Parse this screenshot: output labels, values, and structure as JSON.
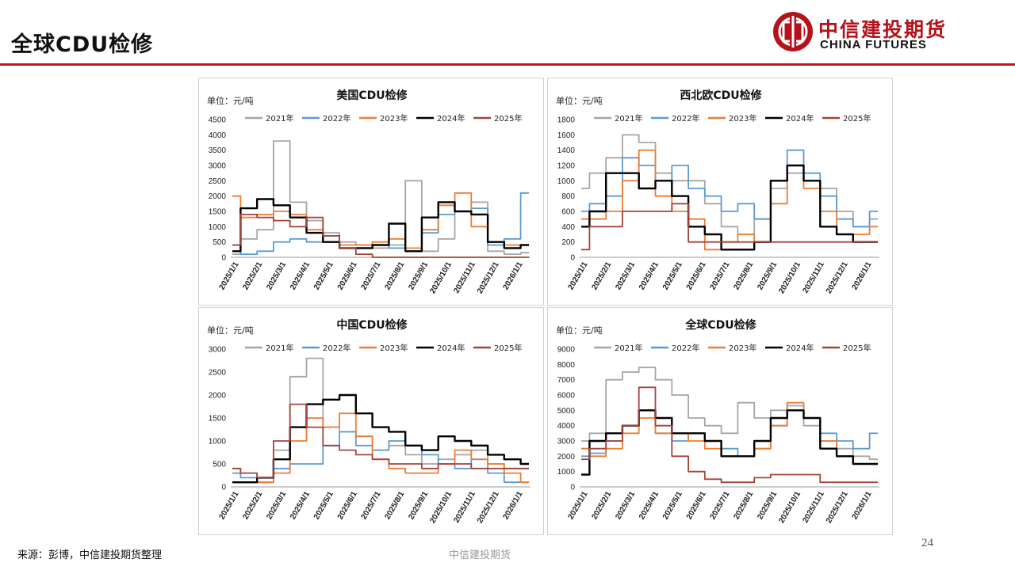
{
  "slide": {
    "title": "全球CDU检修",
    "source": "来源：彭博，中信建投期货整理",
    "footer_center": "中信建投期货",
    "page_number": "24"
  },
  "logo": {
    "cn": "中信建投期货",
    "en": "CHINA FUTURES",
    "color": "#b5121b"
  },
  "series_colors": {
    "2021年": "#a6a6a6",
    "2022年": "#5b9bd5",
    "2023年": "#ed7d31",
    "2024年": "#000000",
    "2025年": "#a5433b"
  },
  "chart_data": [
    {
      "type": "line",
      "title": "美国CDU检修",
      "unit_label": "单位：元/吨",
      "ylim": [
        0,
        4500
      ],
      "yticks": [
        0,
        500,
        1000,
        1500,
        2000,
        2500,
        3000,
        3500,
        4000,
        4500
      ],
      "x_ticks": [
        "2025/1/1",
        "2025/2/1",
        "2025/3/1",
        "2025/4/1",
        "2025/5/1",
        "2025/6/1",
        "2025/7/1",
        "2025/8/1",
        "2025/9/1",
        "2025/10/1",
        "2025/11/1",
        "2025/12/1",
        "2026/1/1"
      ],
      "legend": "top",
      "series": [
        {
          "name": "2021年",
          "values": [
            100,
            600,
            900,
            3800,
            1800,
            1200,
            800,
            500,
            400,
            300,
            400,
            2500,
            200,
            600,
            1500,
            1800,
            200,
            100,
            150
          ]
        },
        {
          "name": "2022年",
          "values": [
            400,
            100,
            200,
            500,
            600,
            500,
            700,
            300,
            300,
            400,
            300,
            200,
            800,
            1400,
            1500,
            1600,
            400,
            600,
            2100
          ]
        },
        {
          "name": "2023年",
          "values": [
            2000,
            1300,
            1400,
            1500,
            1400,
            900,
            700,
            400,
            400,
            500,
            600,
            300,
            900,
            1700,
            2100,
            1000,
            500,
            400,
            400
          ]
        },
        {
          "name": "2024年",
          "values": [
            200,
            1600,
            1900,
            1700,
            1300,
            800,
            500,
            300,
            300,
            400,
            1100,
            200,
            1300,
            1800,
            1500,
            1400,
            500,
            300,
            400
          ]
        },
        {
          "name": "2025年",
          "values": [
            400,
            1400,
            1300,
            1200,
            1000,
            1300,
            700,
            300,
            100,
            0,
            0,
            0,
            0,
            0,
            0,
            0,
            0,
            0,
            0
          ]
        }
      ]
    },
    {
      "type": "line",
      "title": "西北欧CDU检修",
      "unit_label": "单位：元/吨",
      "ylim": [
        0,
        1800
      ],
      "yticks": [
        0,
        200,
        400,
        600,
        800,
        1000,
        1200,
        1400,
        1600,
        1800
      ],
      "x_ticks": [
        "2025/1/1",
        "2025/2/1",
        "2025/3/1",
        "2025/4/1",
        "2025/5/1",
        "2025/6/1",
        "2025/7/1",
        "2025/8/1",
        "2025/9/1",
        "2025/10/1",
        "2025/11/1",
        "2025/12/1",
        "2026/1/1"
      ],
      "legend": "top",
      "series": [
        {
          "name": "2021年",
          "values": [
            900,
            1100,
            1300,
            1600,
            1500,
            1100,
            1000,
            1000,
            700,
            400,
            300,
            500,
            900,
            1100,
            1000,
            900,
            600,
            400,
            500
          ]
        },
        {
          "name": "2022年",
          "values": [
            600,
            700,
            800,
            1300,
            1200,
            1000,
            1200,
            900,
            800,
            600,
            700,
            500,
            1000,
            1400,
            1100,
            800,
            500,
            400,
            600
          ]
        },
        {
          "name": "2023年",
          "values": [
            500,
            500,
            600,
            1000,
            1400,
            800,
            600,
            500,
            100,
            200,
            300,
            200,
            700,
            1200,
            900,
            600,
            300,
            300,
            400
          ]
        },
        {
          "name": "2024年",
          "values": [
            400,
            600,
            1100,
            1100,
            900,
            1000,
            800,
            400,
            300,
            100,
            100,
            200,
            1000,
            1200,
            1000,
            400,
            300,
            200,
            200
          ]
        },
        {
          "name": "2025年",
          "values": [
            100,
            400,
            400,
            600,
            600,
            600,
            700,
            200,
            200,
            200,
            200,
            200,
            200,
            200,
            200,
            200,
            200,
            200,
            200
          ]
        }
      ]
    },
    {
      "type": "line",
      "title": "中国CDU检修",
      "unit_label": "单位：元/吨",
      "ylim": [
        0,
        3000
      ],
      "yticks": [
        0,
        500,
        1000,
        1500,
        2000,
        2500,
        3000
      ],
      "x_ticks": [
        "2025/1/1",
        "2025/2/1",
        "2025/3/1",
        "2025/4/1",
        "2025/5/1",
        "2025/6/1",
        "2025/7/1",
        "2025/8/1",
        "2025/9/1",
        "2025/10/1",
        "2025/11/1",
        "2025/12/1",
        "2026/1/1"
      ],
      "legend": "top",
      "series": [
        {
          "name": "2021年",
          "values": [
            400,
            300,
            200,
            800,
            2400,
            2800,
            1300,
            1200,
            1100,
            800,
            900,
            700,
            500,
            600,
            700,
            800,
            500,
            400,
            400
          ]
        },
        {
          "name": "2022年",
          "values": [
            300,
            200,
            100,
            400,
            500,
            500,
            900,
            1200,
            900,
            800,
            1000,
            900,
            700,
            500,
            400,
            600,
            300,
            100,
            100
          ]
        },
        {
          "name": "2023年",
          "values": [
            100,
            100,
            100,
            300,
            1000,
            1500,
            1300,
            1600,
            1100,
            600,
            400,
            300,
            300,
            500,
            800,
            600,
            500,
            300,
            100
          ]
        },
        {
          "name": "2024年",
          "values": [
            100,
            100,
            200,
            600,
            1300,
            1800,
            1900,
            2000,
            1600,
            1300,
            1200,
            900,
            800,
            1100,
            1000,
            900,
            700,
            600,
            500
          ]
        },
        {
          "name": "2025年",
          "values": [
            400,
            300,
            200,
            1000,
            1800,
            1300,
            900,
            800,
            700,
            600,
            500,
            500,
            400,
            500,
            500,
            400,
            400,
            400,
            400
          ]
        }
      ]
    },
    {
      "type": "line",
      "title": "全球CDU检修",
      "unit_label": "单位：元/吨",
      "ylim": [
        0,
        9000
      ],
      "yticks": [
        0,
        1000,
        2000,
        3000,
        4000,
        5000,
        6000,
        7000,
        8000,
        9000
      ],
      "x_ticks": [
        "2025/1/1",
        "2025/2/1",
        "2025/3/1",
        "2025/4/1",
        "2025/5/1",
        "2025/6/1",
        "2025/7/1",
        "2025/8/1",
        "2025/9/1",
        "2025/10/1",
        "2025/11/1",
        "2025/12/1",
        "2026/1/1"
      ],
      "legend": "top",
      "series": [
        {
          "name": "2021年",
          "values": [
            3000,
            3500,
            7000,
            7500,
            7800,
            7000,
            6000,
            4500,
            4000,
            3500,
            5500,
            4500,
            5000,
            5300,
            4000,
            3000,
            2500,
            2000,
            1800
          ]
        },
        {
          "name": "2022年",
          "values": [
            2000,
            2200,
            3000,
            4000,
            5000,
            3500,
            3000,
            3500,
            3000,
            2500,
            2000,
            2500,
            4000,
            5000,
            4500,
            3500,
            3000,
            2500,
            3500
          ]
        },
        {
          "name": "2023年",
          "values": [
            2500,
            2000,
            2500,
            3500,
            4500,
            3500,
            3500,
            3000,
            2500,
            2000,
            2000,
            2500,
            4000,
            5500,
            4500,
            3000,
            2000,
            1500,
            1500
          ]
        },
        {
          "name": "2024年",
          "values": [
            800,
            3000,
            3500,
            4000,
            5000,
            4500,
            3500,
            3500,
            3000,
            2000,
            2000,
            3000,
            4500,
            5000,
            4500,
            2500,
            2000,
            1500,
            1500
          ]
        },
        {
          "name": "2025年",
          "values": [
            1800,
            2500,
            3000,
            4000,
            6500,
            4000,
            2000,
            1000,
            500,
            300,
            300,
            600,
            800,
            800,
            800,
            300,
            300,
            300,
            300
          ]
        }
      ]
    }
  ]
}
